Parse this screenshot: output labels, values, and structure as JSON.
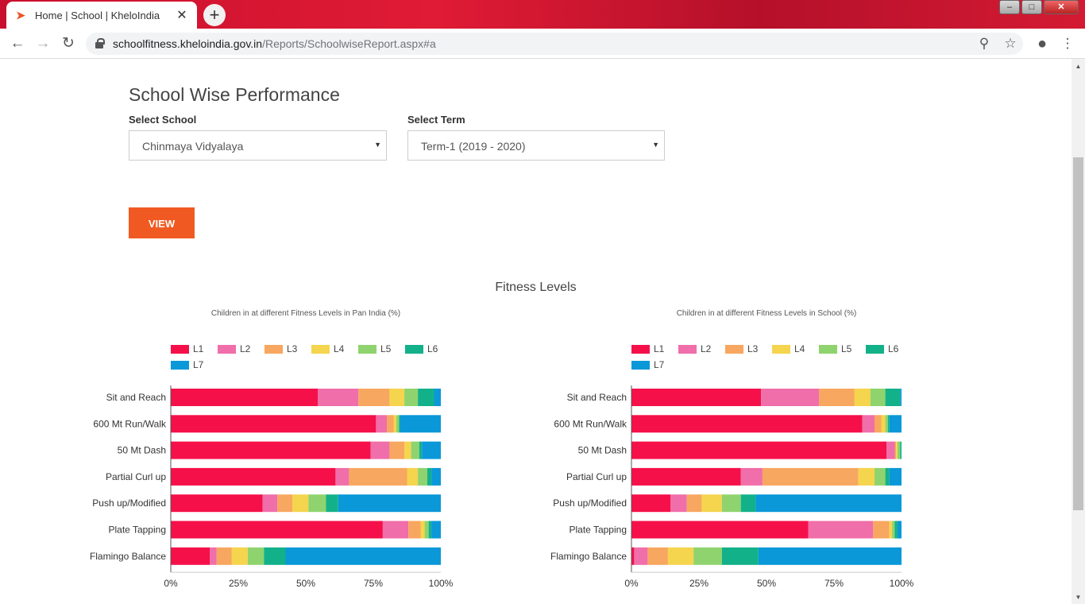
{
  "browser": {
    "tab_title": "Home | School | KheloIndia",
    "url_host": "schoolfitness.kheloindia.gov.in",
    "url_path": "/Reports/SchoolwiseReport.aspx#a",
    "icons": [
      "back-arrow-icon",
      "forward-arrow-icon",
      "reload-icon",
      "lock-icon",
      "zoom-icon",
      "star-icon",
      "account-icon",
      "menu-icon"
    ]
  },
  "page": {
    "title": "School Wise Performance",
    "school_label": "Select School",
    "school_value": "Chinmaya Vidyalaya",
    "term_label": "Select Term",
    "term_value": "Term-1 (2019 - 2020)",
    "view_button": "VIEW",
    "section_title": "Fitness Levels"
  },
  "colors": {
    "L1": "#f5104a",
    "L2": "#f06eaa",
    "L3": "#f7a75f",
    "L4": "#f5d44e",
    "L5": "#8fd36e",
    "L6": "#13b18a",
    "L7": "#0a98d8",
    "accent": "#f05a22"
  },
  "chart_data": [
    {
      "type": "bar",
      "stacked": true,
      "orientation": "horizontal",
      "title": "Children in at different Fitness Levels in Pan India (%)",
      "categories": [
        "Sit and Reach",
        "600 Mt Run/Walk",
        "50 Mt Dash",
        "Partial Curl up",
        "Push up/Modified",
        "Plate Tapping",
        "Flamingo Balance"
      ],
      "xticks": [
        "0%",
        "25%",
        "50%",
        "75%",
        "100%"
      ],
      "xlim": [
        0,
        100
      ],
      "legend_position": "top-left",
      "series": [
        {
          "name": "L1",
          "values": [
            54.5,
            76,
            74,
            61,
            34,
            78.5,
            14.5
          ]
        },
        {
          "name": "L2",
          "values": [
            15,
            4,
            7,
            5,
            5.5,
            9.5,
            2.5
          ]
        },
        {
          "name": "L3",
          "values": [
            11.5,
            2.5,
            5.5,
            21.5,
            5.5,
            4.5,
            5.5
          ]
        },
        {
          "name": "L4",
          "values": [
            5.5,
            1,
            2.5,
            4,
            6,
            1.5,
            6
          ]
        },
        {
          "name": "L5",
          "values": [
            5,
            1,
            3,
            3.5,
            6.5,
            1.5,
            6
          ]
        },
        {
          "name": "L6",
          "values": [
            6,
            0.5,
            1,
            1.5,
            4.5,
            1,
            8
          ]
        },
        {
          "name": "L7",
          "values": [
            2.5,
            15,
            7,
            3.5,
            38,
            3.5,
            57.5
          ]
        }
      ]
    },
    {
      "type": "bar",
      "stacked": true,
      "orientation": "horizontal",
      "title": "Children in at different Fitness Levels in School (%)",
      "categories": [
        "Sit and Reach",
        "600 Mt Run/Walk",
        "50 Mt Dash",
        "Partial Curl up",
        "Push up/Modified",
        "Plate Tapping",
        "Flamingo Balance"
      ],
      "xticks": [
        "0%",
        "25%",
        "50%",
        "75%",
        "100%"
      ],
      "xlim": [
        0,
        100
      ],
      "legend_position": "top-left",
      "series": [
        {
          "name": "L1",
          "values": [
            48,
            85.5,
            94.5,
            40.5,
            14.5,
            65.5,
            1
          ]
        },
        {
          "name": "L2",
          "values": [
            21.5,
            4.5,
            3,
            8,
            6,
            24,
            5
          ]
        },
        {
          "name": "L3",
          "values": [
            13,
            2.5,
            0.5,
            35.5,
            5.5,
            6,
            7.5
          ]
        },
        {
          "name": "L4",
          "values": [
            6,
            1.5,
            0.5,
            6,
            7.5,
            1,
            9.5
          ]
        },
        {
          "name": "L5",
          "values": [
            5.5,
            1,
            1,
            4,
            7,
            1,
            10.5
          ]
        },
        {
          "name": "L6",
          "values": [
            5.5,
            0.5,
            0.5,
            1.5,
            5.5,
            1,
            13.5
          ]
        },
        {
          "name": "L7",
          "values": [
            0.5,
            4.5,
            0,
            4.5,
            54,
            1.5,
            53
          ]
        }
      ]
    }
  ]
}
